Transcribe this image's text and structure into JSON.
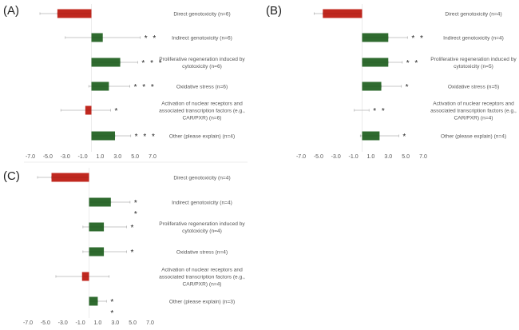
{
  "chart_data": [
    {
      "type": "bar",
      "orientation": "horizontal",
      "panel_label": "(A)",
      "xlim": [
        -7,
        7
      ],
      "x_ticks": [
        "-7.0",
        "-5.0",
        "-3.0",
        "-1.0",
        "1.0",
        "3.0",
        "5.0",
        "7.0"
      ],
      "grid": false,
      "categories": [
        [
          "Direct genotoxicity (n=6)"
        ],
        [
          "Indirect genotoxicity (n=6)"
        ],
        [
          "Proliferative regeneration induced by",
          "cytotoxicity (n=6)"
        ],
        [
          "Oxidative stress (n=6)"
        ],
        [
          "Activation of nuclear receptors and",
          "associated transcription factors (e.g.,",
          "CAR/PXR) (n=6)"
        ],
        [
          "Other (please explain) (n=4)"
        ]
      ],
      "values": [
        -3.9,
        1.3,
        3.3,
        2.0,
        -0.7,
        2.7
      ],
      "error_low": [
        -5.9,
        -3.0,
        3.3,
        -0.3,
        -3.5,
        2.7
      ],
      "error_high": [
        -3.9,
        5.6,
        5.3,
        4.4,
        2.2,
        4.5
      ],
      "significance": [
        "",
        "**",
        "***",
        "***",
        "*",
        "***"
      ]
    },
    {
      "type": "bar",
      "orientation": "horizontal",
      "panel_label": "(B)",
      "xlim": [
        -7,
        7
      ],
      "x_ticks": [
        "-7.0",
        "-5.0",
        "-3.0",
        "-1.0",
        "1.0",
        "3.0",
        "5.0",
        "7.0"
      ],
      "grid": false,
      "categories": [
        [
          "Direct genotoxicity (n=4)"
        ],
        [
          "Indirect genotoxicity (n=4)"
        ],
        [
          "Proliferative regeneration induced by",
          "cytotoxicity  (n=5)"
        ],
        [
          "Oxidative stress (n=5)"
        ],
        [
          "Activation of nuclear receptors and",
          "associated transcription factors (e.g.,",
          "CAR/PXR)  (n=4)"
        ],
        [
          "Other (please explain) (n=4)"
        ]
      ],
      "values": [
        -4.5,
        3.0,
        3.0,
        2.2,
        0.0,
        2.0
      ],
      "error_low": [
        -5.5,
        3.0,
        3.0,
        2.2,
        -0.9,
        -0.2
      ],
      "error_high": [
        -4.5,
        5.2,
        4.6,
        4.5,
        0.8,
        4.2
      ],
      "significance": [
        "",
        "**",
        "**",
        "*",
        "**",
        "*"
      ]
    },
    {
      "type": "bar",
      "orientation": "horizontal",
      "panel_label": "(C)",
      "xlim": [
        -7,
        7
      ],
      "x_ticks": [
        "-7.0",
        "-5.0",
        "-3.0",
        "-1.0",
        "1.0",
        "3.0",
        "5.0",
        "7.0"
      ],
      "grid": false,
      "categories": [
        [
          "Direct genotoxicity  (n=4)"
        ],
        [
          "Indirect genotoxicity  (n=4)"
        ],
        [
          "Proliferative regeneration induced by",
          "cytotoxicity  (n=4)"
        ],
        [
          "Oxidative stress (n=4)"
        ],
        [
          "Activation of nuclear receptors and",
          "associated transcription factors (e.g.,",
          "CAR/PXR) (n=4)"
        ],
        [
          "Other (please explain) (n=3)"
        ]
      ],
      "values": [
        -4.3,
        2.5,
        1.7,
        1.7,
        -0.8,
        1.0
      ],
      "error_low": [
        -5.9,
        2.5,
        -0.7,
        -0.7,
        -3.8,
        1.0
      ],
      "error_high": [
        -4.3,
        4.7,
        4.3,
        4.3,
        2.3,
        2.0
      ],
      "significance": [
        "",
        "**",
        "*",
        "*",
        "",
        "**"
      ]
    }
  ],
  "colors": {
    "negative": "#c0281f",
    "positive": "#2f6b2f",
    "error_bar": "#b5b5b5",
    "text": "#555555"
  }
}
